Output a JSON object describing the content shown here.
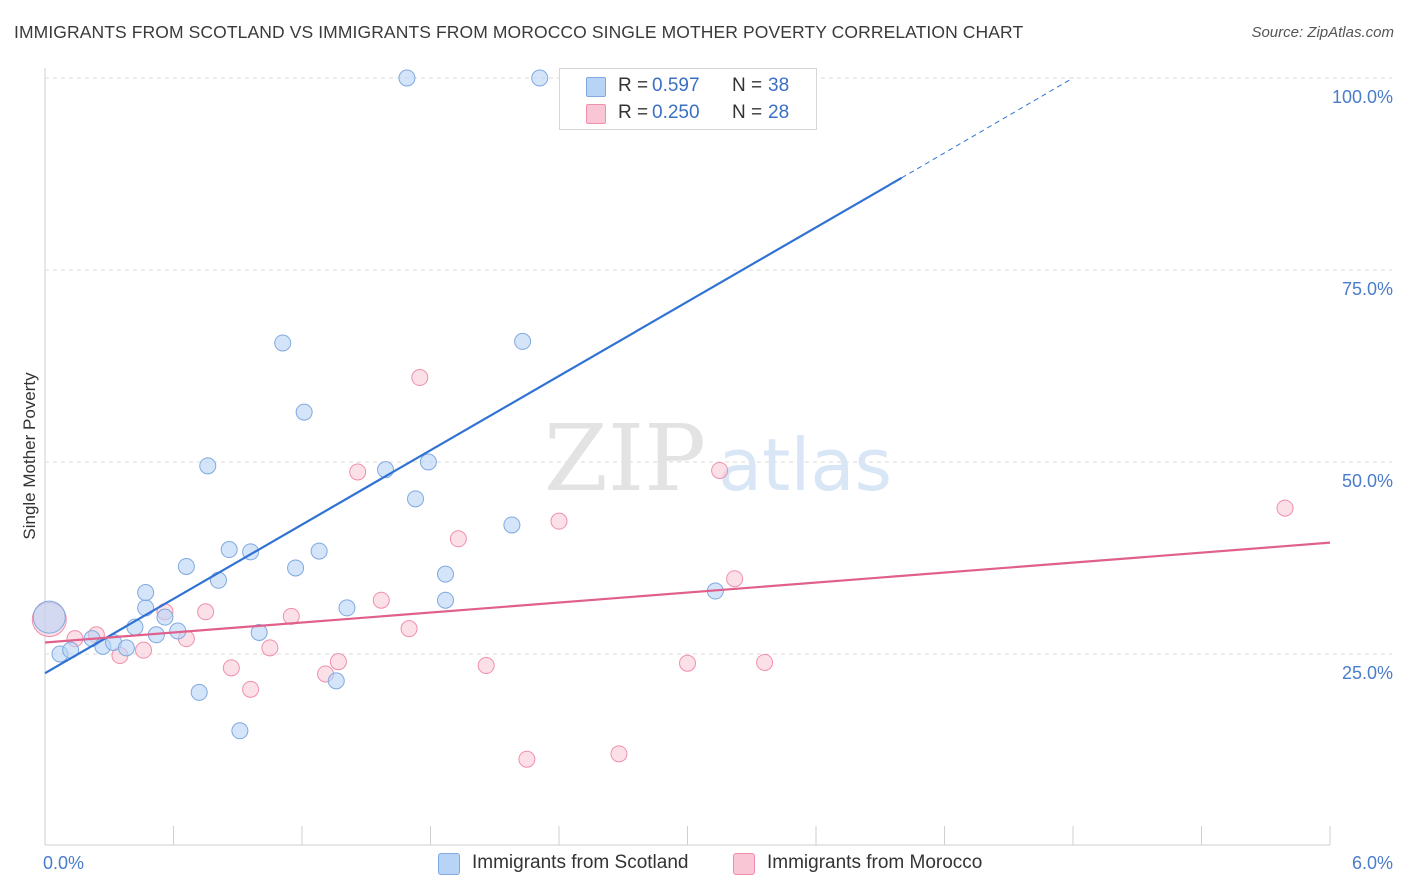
{
  "title": "IMMIGRANTS FROM SCOTLAND VS IMMIGRANTS FROM MOROCCO SINGLE MOTHER POVERTY CORRELATION CHART",
  "source": "Source: ZipAtlas.com",
  "watermark": {
    "zip": "ZIP",
    "atlas": "atlas"
  },
  "colors": {
    "scotland_fill": "#b7d3f5",
    "scotland_stroke": "#7fa9e0",
    "scotland_line": "#2f72d4",
    "morocco_fill": "#f9c6d5",
    "morocco_stroke": "#f08fac",
    "morocco_line": "#e0608b",
    "tick_label": "#4a7ccc",
    "grid": "#d9d9d9"
  },
  "legend_top": [
    {
      "r_label": "R =",
      "r_value": "0.597",
      "n_label": "N =",
      "n_value": "38"
    },
    {
      "r_label": "R =",
      "r_value": "0.250",
      "n_label": "N =",
      "n_value": "28"
    }
  ],
  "legend_bottom": [
    "Immigrants from Scotland",
    "Immigrants from Morocco"
  ],
  "chart_data": {
    "type": "scatter",
    "title": "IMMIGRANTS FROM SCOTLAND VS IMMIGRANTS FROM MOROCCO SINGLE MOTHER POVERTY CORRELATION CHART",
    "xlabel": "",
    "ylabel": "Single Mother Poverty",
    "xlim": [
      0,
      6
    ],
    "ylim": [
      0,
      105
    ],
    "x_tick_labels": [
      "0.0%",
      "6.0%"
    ],
    "y_ticks": [
      25,
      50,
      75,
      100
    ],
    "y_tick_labels": [
      "25.0%",
      "50.0%",
      "75.0%",
      "100.0%"
    ],
    "grid": true,
    "legend_position": "top-center",
    "series": [
      {
        "name": "Immigrants from Scotland",
        "points": [
          [
            0.02,
            29.8
          ],
          [
            0.07,
            25.0
          ],
          [
            0.12,
            25.5
          ],
          [
            0.22,
            27.0
          ],
          [
            0.27,
            26.0
          ],
          [
            0.32,
            26.5
          ],
          [
            0.38,
            25.8
          ],
          [
            0.42,
            28.5
          ],
          [
            0.47,
            31.0
          ],
          [
            0.52,
            27.5
          ],
          [
            0.56,
            29.8
          ],
          [
            0.62,
            28.0
          ],
          [
            0.66,
            36.4
          ],
          [
            0.72,
            20.0
          ],
          [
            0.76,
            49.5
          ],
          [
            0.81,
            34.6
          ],
          [
            0.86,
            38.6
          ],
          [
            0.91,
            15.0
          ],
          [
            0.96,
            38.3
          ],
          [
            1.0,
            27.8
          ],
          [
            1.11,
            65.5
          ],
          [
            1.17,
            36.2
          ],
          [
            1.21,
            56.5
          ],
          [
            1.28,
            38.4
          ],
          [
            1.36,
            21.5
          ],
          [
            1.41,
            31.0
          ],
          [
            1.59,
            49.0
          ],
          [
            1.69,
            100.0
          ],
          [
            1.73,
            45.2
          ],
          [
            1.79,
            50.0
          ],
          [
            1.87,
            35.4
          ],
          [
            1.87,
            32.0
          ],
          [
            2.18,
            41.8
          ],
          [
            2.23,
            65.7
          ],
          [
            2.31,
            100.0
          ],
          [
            3.11,
            100.0
          ],
          [
            3.13,
            33.2
          ],
          [
            0.47,
            33.0
          ]
        ],
        "trendline": {
          "x": [
            0.0,
            4.0
          ],
          "y": [
            22.5,
            87.0
          ],
          "dashed_extension": {
            "x": [
              4.0,
              4.8
            ],
            "y": [
              87.0,
              100.0
            ]
          }
        }
      },
      {
        "name": "Immigrants from Morocco",
        "points": [
          [
            0.02,
            29.5
          ],
          [
            0.14,
            27.0
          ],
          [
            0.24,
            27.5
          ],
          [
            0.35,
            24.8
          ],
          [
            0.46,
            25.5
          ],
          [
            0.56,
            30.5
          ],
          [
            0.66,
            27.0
          ],
          [
            0.75,
            30.5
          ],
          [
            0.87,
            23.2
          ],
          [
            0.96,
            20.4
          ],
          [
            1.05,
            25.8
          ],
          [
            1.15,
            29.9
          ],
          [
            1.31,
            22.4
          ],
          [
            1.37,
            24.0
          ],
          [
            1.46,
            48.7
          ],
          [
            1.57,
            32.0
          ],
          [
            1.7,
            28.3
          ],
          [
            1.75,
            61.0
          ],
          [
            1.93,
            40.0
          ],
          [
            2.06,
            23.5
          ],
          [
            2.25,
            11.3
          ],
          [
            2.4,
            42.3
          ],
          [
            2.68,
            12.0
          ],
          [
            3.0,
            23.8
          ],
          [
            3.15,
            48.9
          ],
          [
            3.22,
            34.8
          ],
          [
            3.36,
            23.9
          ],
          [
            5.79,
            44.0
          ]
        ],
        "trendline": {
          "x": [
            0.0,
            6.0
          ],
          "y": [
            26.5,
            39.5
          ]
        }
      }
    ]
  }
}
